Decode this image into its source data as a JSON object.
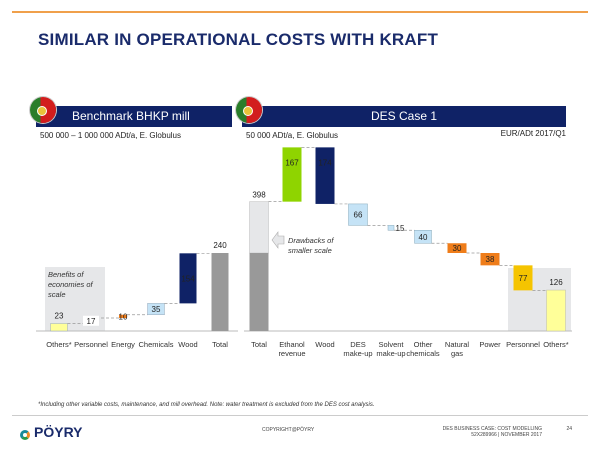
{
  "title": "SIMILAR IN OPERATIONAL COSTS WITH KRAFT",
  "left_panel": {
    "banner": "Benchmark BHKP mill",
    "subtitle": "500 000 – 1 000 000 ADt/a, E. Globulus",
    "flag": "portugal-flag"
  },
  "right_panel": {
    "banner": "DES Case 1",
    "subtitle": "50 000 ADt/a, E. Globulus",
    "unit": "EUR/ADt 2017/Q1",
    "flag": "portugal-flag"
  },
  "footnote": "*Including other variable costs, maintenance, and mill overhead. Note: water treatment is excluded from the DES cost analysis.",
  "footer": {
    "logo": "PÖYRY",
    "copyright": "COPYRIGHT@PÖYRY",
    "doc_line1": "DES BUSINESS CASE: COST MODELLING",
    "doc_line2": "52X289966 | NOVEMBER 2017",
    "page": "24"
  },
  "chart_data": [
    {
      "type": "bar",
      "subtype": "waterfall",
      "title": "Benchmark BHKP mill",
      "unit": "EUR/ADt",
      "categories": [
        "Others*",
        "Personnel",
        "Energy",
        "Chemicals",
        "Wood",
        "Total"
      ],
      "values": [
        23,
        17,
        10,
        35,
        154,
        240
      ],
      "kinds": [
        "step",
        "step",
        "step",
        "step",
        "step",
        "total"
      ],
      "colors": [
        "#ffff99",
        "#f5c400",
        "#ef7d1a",
        "#c5e3f6",
        "#0f2266",
        "#999999"
      ],
      "annotation": "Benefits of economies of scale"
    },
    {
      "type": "bar",
      "subtype": "waterfall",
      "title": "DES Case 1",
      "unit": "EUR/ADt 2017/Q1",
      "categories": [
        "Total",
        "Ethanol revenue",
        "Wood",
        "DES make-up",
        "Solvent make-up",
        "Other chemicals",
        "Natural gas",
        "Power",
        "Personnel",
        "Others*"
      ],
      "values": [
        398,
        167,
        -174,
        -66,
        -15,
        -40,
        -30,
        -38,
        -77,
        126
      ],
      "labels": [
        "398",
        "167",
        "174",
        "66",
        "15",
        "40",
        "30",
        "38",
        "77",
        "126"
      ],
      "kinds": [
        "total",
        "step",
        "step",
        "step",
        "step",
        "step",
        "step",
        "step",
        "step",
        "end"
      ],
      "colors": [
        "#999999",
        "#8fd400",
        "#0f2266",
        "#c5e3f6",
        "#c5e3f6",
        "#c5e3f6",
        "#ef7d1a",
        "#ef7d1a",
        "#f5c400",
        "#ffff99"
      ],
      "total_split": {
        "benchmark_part": 240,
        "drawback_part": 158
      },
      "annotation": "Drawbacks of smaller scale"
    }
  ]
}
